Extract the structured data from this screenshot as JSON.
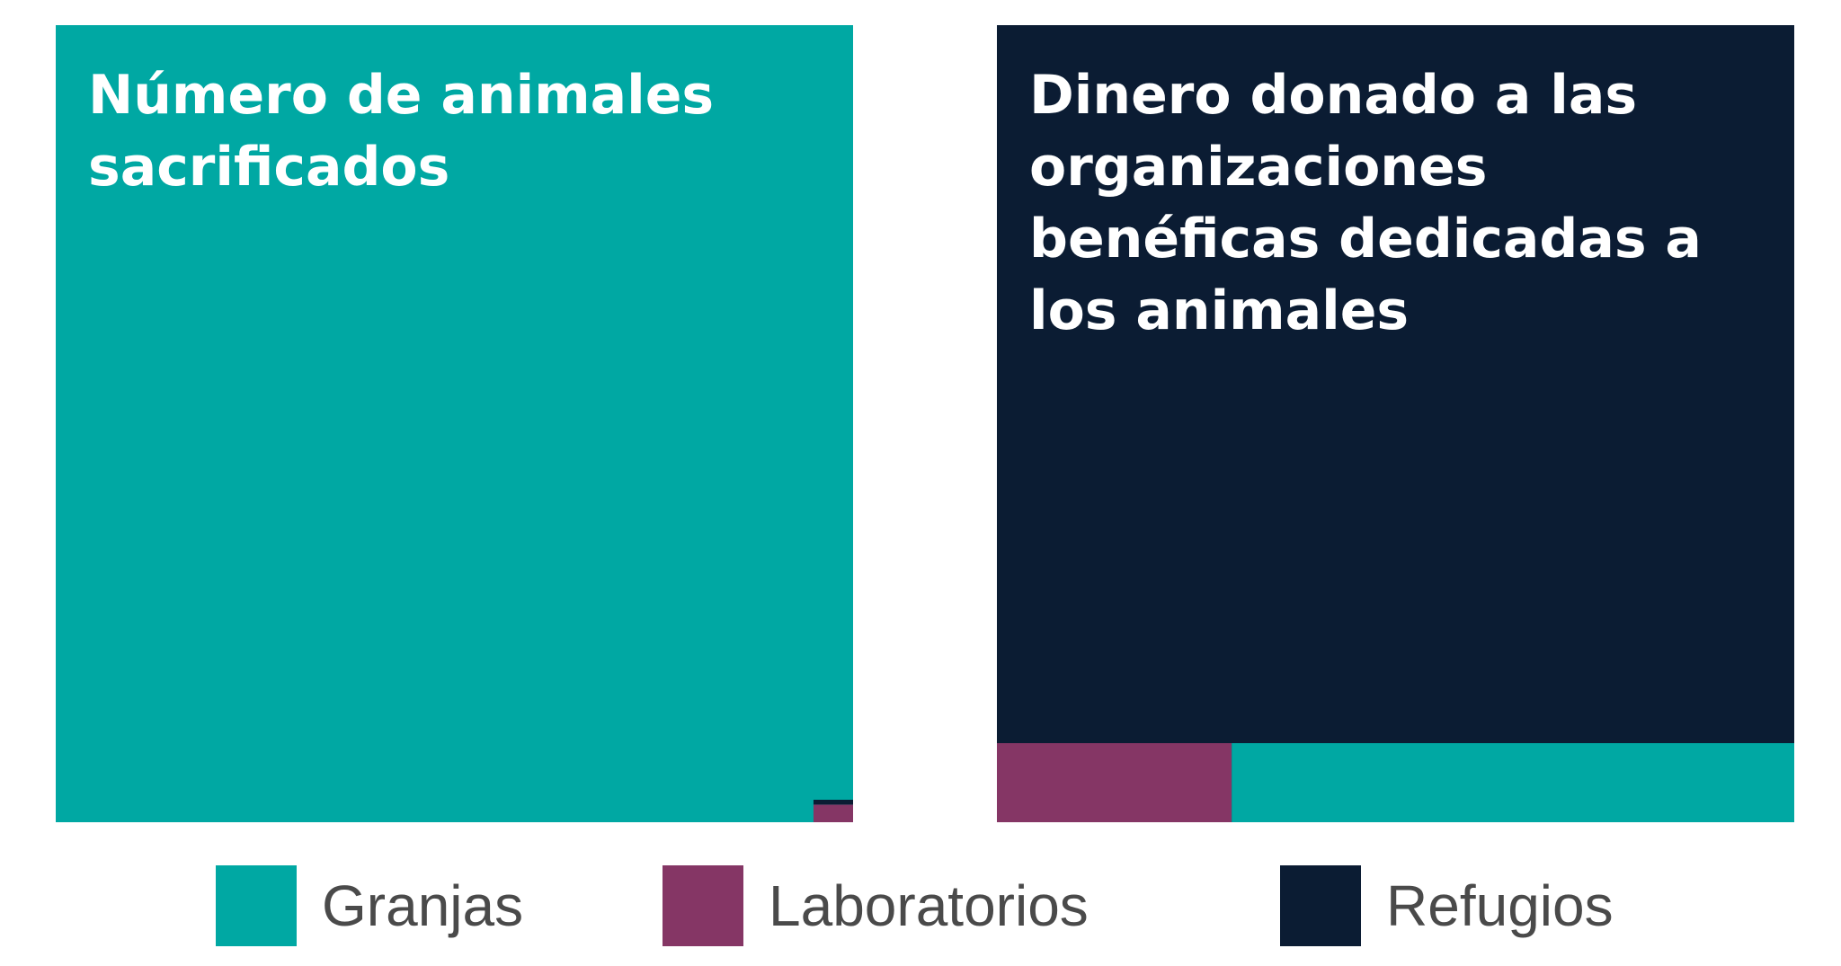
{
  "colors": {
    "Granjas": "#00a8a3",
    "Laboratorios": "#853665",
    "Refugios": "#0b1c33"
  },
  "legend": [
    {
      "label": "Granjas",
      "color": "#00a8a3"
    },
    {
      "label": "Laboratorios",
      "color": "#853665"
    },
    {
      "label": "Refugios",
      "color": "#0b1c33"
    }
  ],
  "chart_data": [
    {
      "type": "treemap",
      "title": "Número de animales sacrificados",
      "unit": "share of total",
      "categories": [
        "Granjas",
        "Laboratorios",
        "Refugios"
      ],
      "values": [
        0.9988,
        0.0011,
        0.0003
      ]
    },
    {
      "type": "treemap",
      "title": "Dinero donado a las organizaciones benéficas dedicadas a los animales",
      "unit": "share of total",
      "categories": [
        "Refugios",
        "Laboratorios",
        "Granjas"
      ],
      "values": [
        0.9,
        0.03,
        0.07
      ]
    }
  ]
}
